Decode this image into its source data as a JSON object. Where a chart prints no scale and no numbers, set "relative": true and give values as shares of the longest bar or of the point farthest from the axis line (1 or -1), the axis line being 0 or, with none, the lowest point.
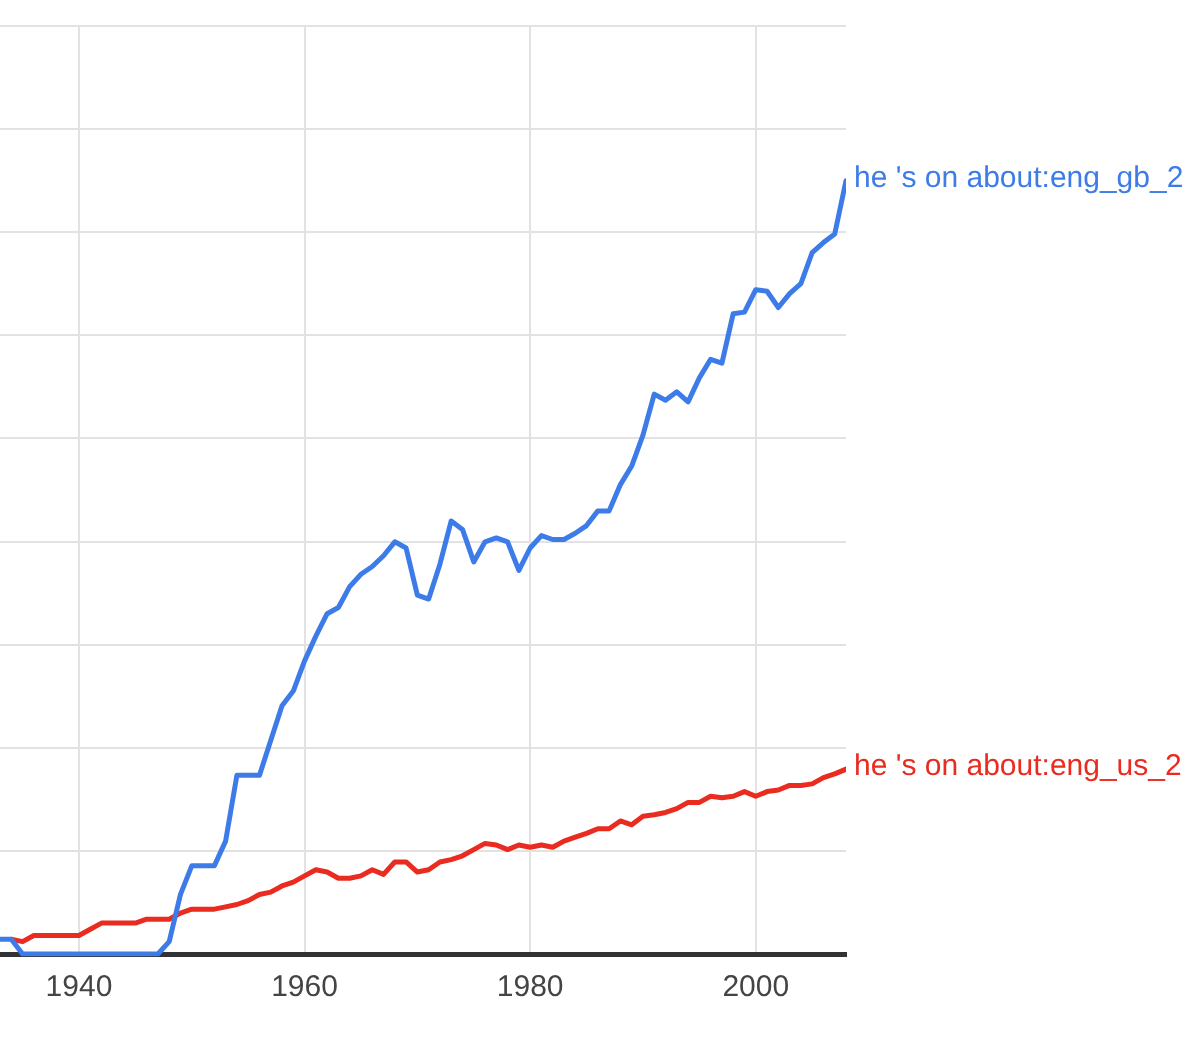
{
  "chart_data": {
    "type": "line",
    "relative": true,
    "x": [
      1933,
      1934,
      1935,
      1936,
      1937,
      1938,
      1939,
      1940,
      1941,
      1942,
      1943,
      1944,
      1945,
      1946,
      1947,
      1948,
      1949,
      1950,
      1951,
      1952,
      1953,
      1954,
      1955,
      1956,
      1957,
      1958,
      1959,
      1960,
      1961,
      1962,
      1963,
      1964,
      1965,
      1966,
      1967,
      1968,
      1969,
      1970,
      1971,
      1972,
      1973,
      1974,
      1975,
      1976,
      1977,
      1978,
      1979,
      1980,
      1981,
      1982,
      1983,
      1984,
      1985,
      1986,
      1987,
      1988,
      1989,
      1990,
      1991,
      1992,
      1993,
      1994,
      1995,
      1996,
      1997,
      1998,
      1999,
      2000,
      2001,
      2002,
      2003,
      2004,
      2005,
      2006,
      2007,
      2008
    ],
    "xlim": [
      1933,
      2008
    ],
    "xticks": [
      1940,
      1960,
      1980,
      2000
    ],
    "grid": true,
    "legend": false,
    "marker": "none",
    "line_style": "solid",
    "series": [
      {
        "name": "he 's on about:eng_gb_2",
        "color": "#3d7ce8",
        "values": [
          0.019,
          0.019,
          0,
          0,
          0,
          0,
          0,
          0,
          0,
          0,
          0,
          0,
          0,
          0,
          0,
          0.016,
          0.077,
          0.114,
          0.114,
          0.114,
          0.146,
          0.231,
          0.231,
          0.231,
          0.276,
          0.321,
          0.34,
          0.379,
          0.411,
          0.44,
          0.448,
          0.475,
          0.491,
          0.501,
          0.515,
          0.533,
          0.525,
          0.464,
          0.459,
          0.504,
          0.56,
          0.549,
          0.507,
          0.533,
          0.538,
          0.533,
          0.496,
          0.525,
          0.541,
          0.536,
          0.536,
          0.544,
          0.554,
          0.573,
          0.573,
          0.607,
          0.631,
          0.671,
          0.724,
          0.716,
          0.727,
          0.714,
          0.745,
          0.769,
          0.764,
          0.828,
          0.83,
          0.859,
          0.857,
          0.836,
          0.854,
          0.867,
          0.907,
          0.92,
          0.931,
          1
        ]
      },
      {
        "name": "he 's on about:eng_us_2",
        "color": "#ea2b1f",
        "values": [
          null,
          0.019,
          0.016,
          0.024,
          0.024,
          0.024,
          0.024,
          0.024,
          0.032,
          0.04,
          0.04,
          0.04,
          0.04,
          0.045,
          0.045,
          0.045,
          0.053,
          0.058,
          0.058,
          0.058,
          0.061,
          0.064,
          0.069,
          0.077,
          0.08,
          0.088,
          0.093,
          0.101,
          0.109,
          0.106,
          0.098,
          0.098,
          0.101,
          0.109,
          0.103,
          0.119,
          0.119,
          0.106,
          0.109,
          0.119,
          0.122,
          0.127,
          0.135,
          0.143,
          0.141,
          0.135,
          0.141,
          0.138,
          0.141,
          0.138,
          0.146,
          0.151,
          0.156,
          0.162,
          0.162,
          0.172,
          0.167,
          0.178,
          0.18,
          0.183,
          0.188,
          0.196,
          0.196,
          0.204,
          0.202,
          0.204,
          0.21,
          0.204,
          0.21,
          0.212,
          0.218,
          0.218,
          0.22,
          0.228,
          0.233,
          0.239
        ]
      }
    ]
  }
}
